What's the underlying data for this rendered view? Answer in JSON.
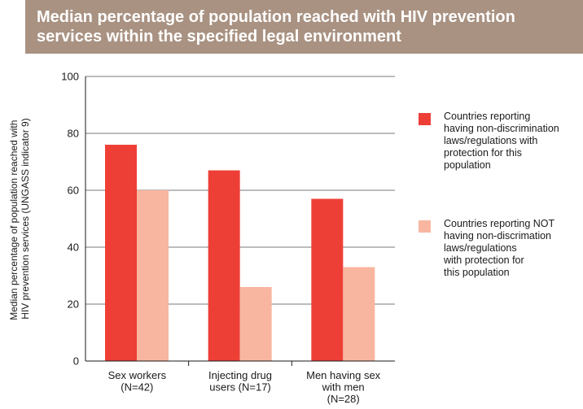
{
  "chart_data": {
    "type": "bar",
    "title_lines": [
      "Median percentage of population reached with HIV prevention",
      "services within the specified legal environment"
    ],
    "ylabel_lines": [
      "Median percentage of population reached with",
      "HIV prevention services (UNGASS indicator 9)"
    ],
    "xlabel": "",
    "ylim": [
      0,
      100
    ],
    "yticks": [
      "0",
      "20",
      "40",
      "60",
      "80",
      "100"
    ],
    "grid": true,
    "legend_position": "right",
    "categories": [
      {
        "lines": [
          "Sex workers",
          "(N=42)"
        ]
      },
      {
        "lines": [
          "Injecting drug",
          "users (N=17)"
        ]
      },
      {
        "lines": [
          "Men having sex",
          "with men",
          "(N=28)"
        ]
      }
    ],
    "series": [
      {
        "name": "Countries reporting having non-discrimination laws/regulations with protection for this population",
        "legend_text": "Countries reporting\nhaving non-discrimination\nlaws/regulations with\nprotection for this\npopulation",
        "color": "#ee3f37",
        "values": [
          76,
          67,
          57
        ]
      },
      {
        "name": "Countries reporting NOT having non-discrimation laws/regulations with protection for this population",
        "legend_text": "Countries reporting NOT\nhaving non-discrimation\nlaws/regulations\nwith protection for\nthis population",
        "color": "#f8b6a0",
        "values": [
          60,
          26,
          33
        ]
      }
    ]
  }
}
